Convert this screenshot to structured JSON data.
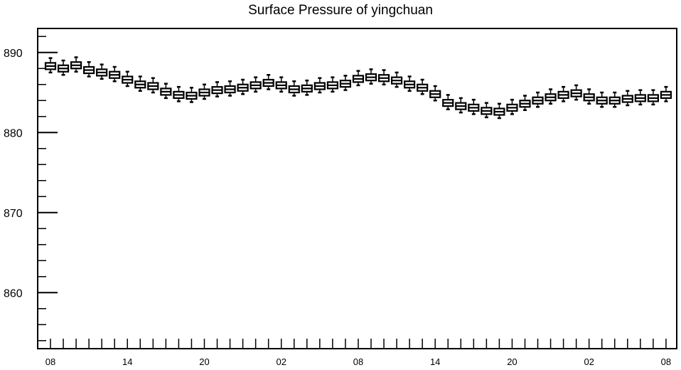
{
  "chart_data": {
    "type": "box",
    "title": "Surface Pressure of yingchuan",
    "xlabel": "",
    "ylabel": "",
    "ylim": [
      853,
      893
    ],
    "yticks": [
      860,
      870,
      880,
      890
    ],
    "xtick_labels": [
      {
        "index": 0,
        "label": "08"
      },
      {
        "index": 6,
        "label": "14"
      },
      {
        "index": 12,
        "label": "20"
      },
      {
        "index": 18,
        "label": "02"
      },
      {
        "index": 24,
        "label": "08"
      },
      {
        "index": 30,
        "label": "14"
      },
      {
        "index": 36,
        "label": "20"
      },
      {
        "index": 42,
        "label": "02"
      },
      {
        "index": 48,
        "label": "08"
      }
    ],
    "grid": false,
    "box_color": "#000000",
    "x": [
      0,
      1,
      2,
      3,
      4,
      5,
      6,
      7,
      8,
      9,
      10,
      11,
      12,
      13,
      14,
      15,
      16,
      17,
      18,
      19,
      20,
      21,
      22,
      23,
      24,
      25,
      26,
      27,
      28,
      29,
      30,
      31,
      32,
      33,
      34,
      35,
      36,
      37,
      38,
      39,
      40,
      41,
      42,
      43,
      44,
      45,
      46,
      47,
      48
    ],
    "values": [
      888.3,
      888.0,
      888.4,
      887.8,
      887.5,
      887.2,
      886.6,
      886.0,
      885.8,
      885.1,
      884.7,
      884.6,
      885.0,
      885.3,
      885.4,
      885.6,
      885.9,
      886.2,
      885.9,
      885.4,
      885.5,
      885.8,
      885.9,
      886.1,
      886.7,
      886.9,
      886.8,
      886.5,
      886.0,
      885.6,
      884.8,
      883.7,
      883.3,
      883.1,
      882.7,
      882.6,
      883.1,
      883.6,
      884.0,
      884.4,
      884.7,
      884.9,
      884.4,
      884.0,
      884.0,
      884.2,
      884.3,
      884.3,
      884.7
    ]
  }
}
